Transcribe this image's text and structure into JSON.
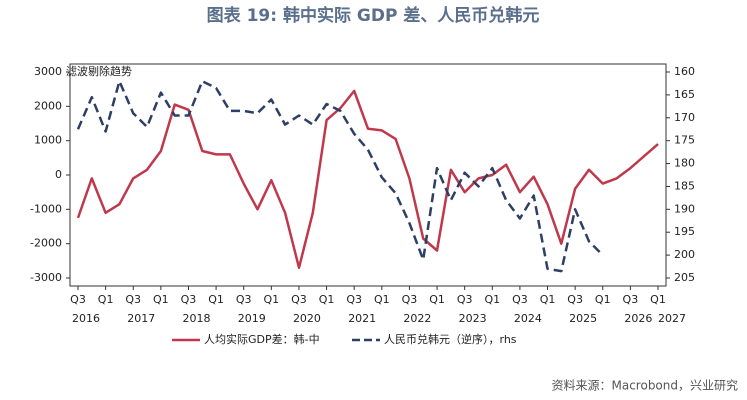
{
  "chart_data": {
    "type": "line",
    "title": "图表 19: 韩中实际 GDP 差、人民币兑韩元",
    "annotation": "滤波剔除趋势",
    "source": "资料来源：Macrobond，兴业研究",
    "categories": [
      "Q3",
      null,
      "Q1",
      null,
      "Q3",
      null,
      "Q1",
      null,
      "Q3",
      null,
      "Q1",
      null,
      "Q3",
      null,
      "Q1",
      null,
      "Q3",
      null,
      "Q1",
      null,
      "Q3",
      null,
      "Q1",
      null,
      "Q3",
      null,
      "Q1",
      null,
      "Q3",
      null,
      "Q1",
      null,
      "Q3",
      null,
      "Q1",
      null,
      "Q3",
      null,
      "Q1",
      null,
      "Q3",
      null,
      "Q1"
    ],
    "years": [
      "2016",
      "2017",
      "2018",
      "2019",
      "2020",
      "2021",
      "2022",
      "2023",
      "2024",
      "2025",
      "2026",
      "2027"
    ],
    "ylim": [
      -3000,
      3000
    ],
    "yticks": [
      -3000,
      -2000,
      -1000,
      0,
      1000,
      2000,
      3000
    ],
    "y2lim": [
      205,
      160
    ],
    "y2ticks": [
      160,
      165,
      170,
      175,
      180,
      185,
      190,
      195,
      200,
      205
    ],
    "series": [
      {
        "name": "人均实际GDP差：韩-中",
        "color": "#c0384b",
        "dash": false,
        "values": [
          -1250,
          -100,
          -1100,
          -850,
          -100,
          150,
          700,
          2050,
          1900,
          700,
          600,
          600,
          -250,
          -1000,
          -150,
          -1100,
          -2700,
          -1100,
          1600,
          1950,
          2450,
          1350,
          1300,
          1050,
          -100,
          -1850,
          -2200,
          150,
          -500,
          -100,
          0,
          300,
          -500,
          -50,
          -850,
          -2000,
          -400,
          150,
          -250,
          -100,
          200,
          550,
          900
        ]
      },
      {
        "name": "人民币兑韩元（逆序），rhs",
        "color": "#2e3f66",
        "dash": true,
        "axis": "y2",
        "values": [
          172.5,
          165.5,
          173,
          162,
          169,
          172,
          164.5,
          169.5,
          169.5,
          162,
          163.5,
          168.5,
          168.5,
          169,
          166,
          171.5,
          169.5,
          171.5,
          167,
          168.5,
          173.5,
          177,
          183,
          186.5,
          193,
          201,
          181,
          188,
          182,
          185,
          181,
          188,
          192,
          187,
          203,
          203.5,
          190,
          197,
          200,
          null,
          null,
          null,
          null
        ]
      }
    ]
  }
}
